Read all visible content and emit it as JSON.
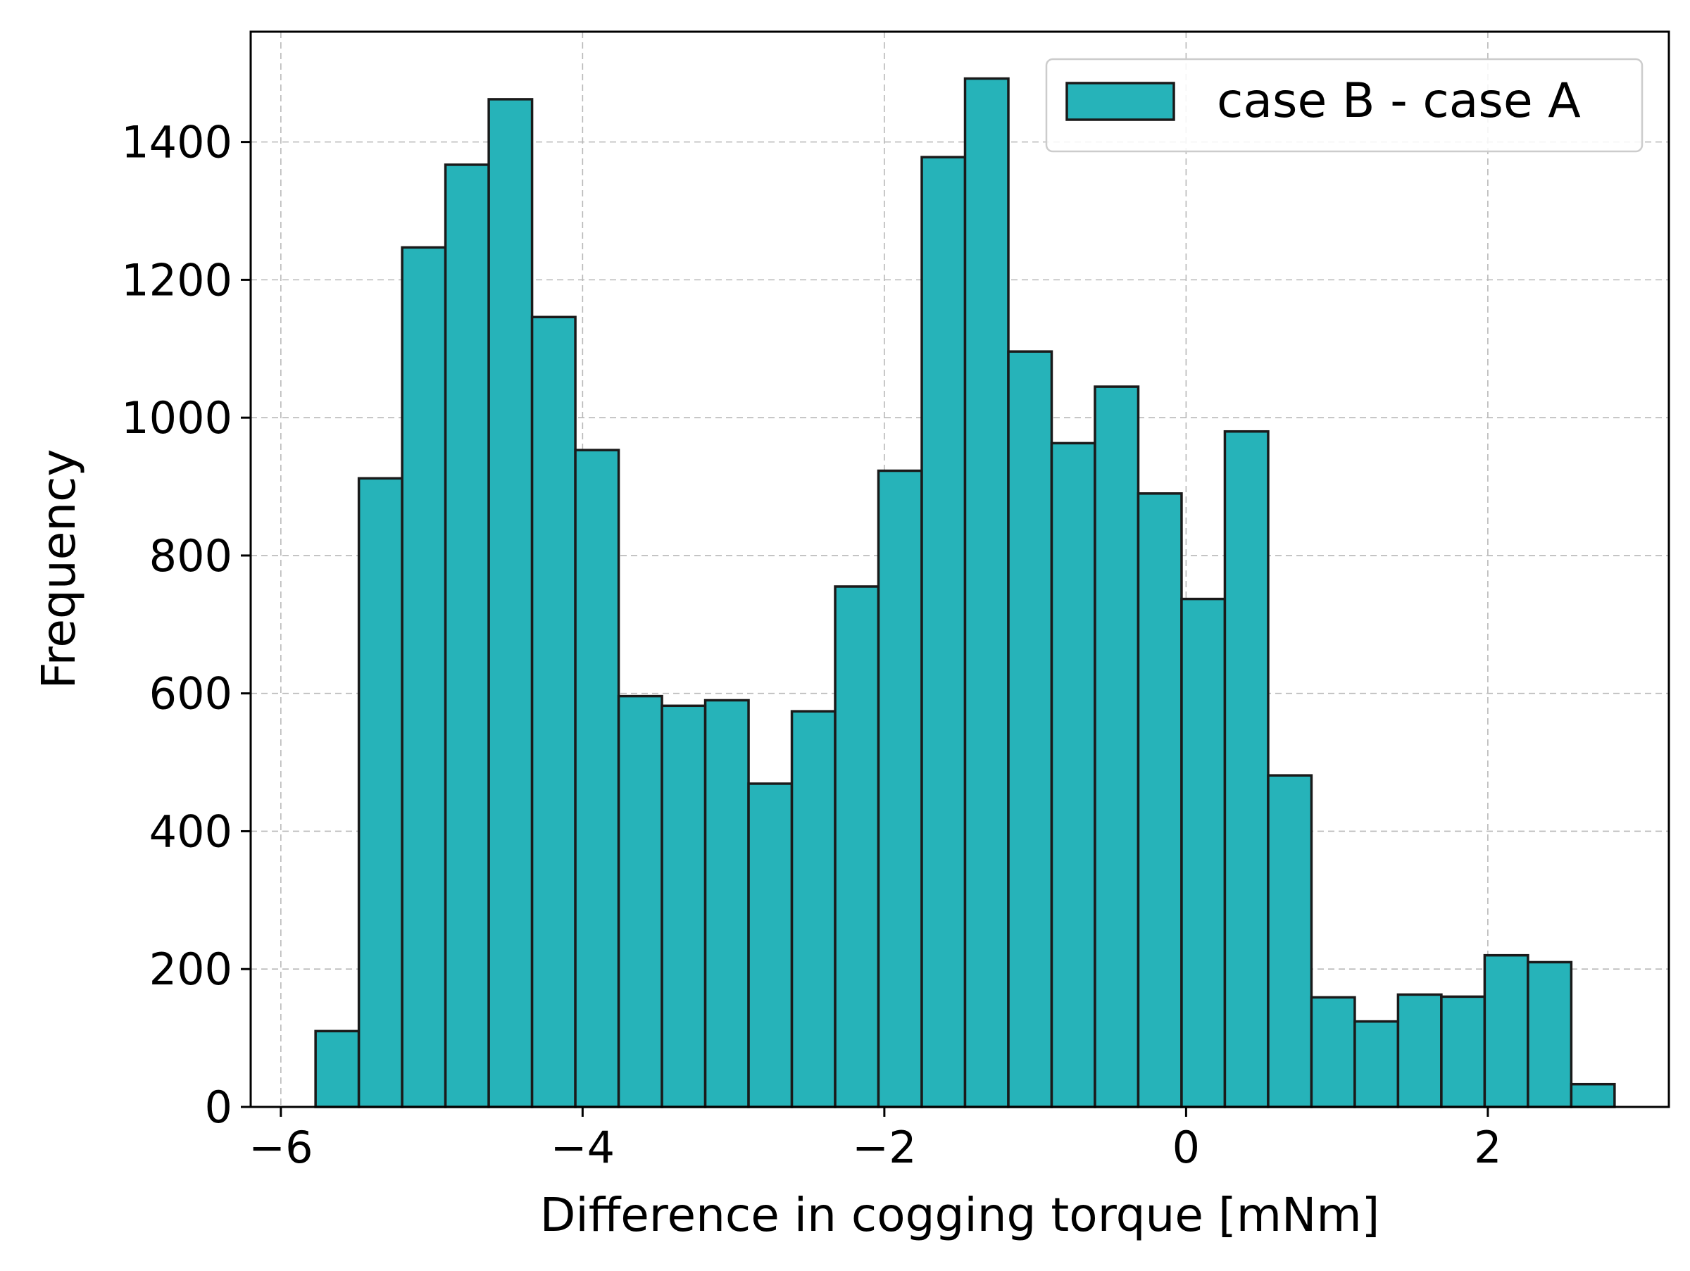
{
  "chart_data": {
    "type": "bar",
    "subtype": "histogram",
    "xlabel": "Difference in cogging torque [mNm]",
    "ylabel": "Frequency",
    "xlim": [
      -6.2,
      3.2
    ],
    "ylim": [
      0,
      1560
    ],
    "xticks": [
      -6,
      -4,
      -2,
      0,
      2
    ],
    "xtick_labels": [
      "−6",
      "−4",
      "−2",
      "0",
      "2"
    ],
    "yticks": [
      0,
      200,
      400,
      600,
      800,
      1000,
      1200,
      1400
    ],
    "ytick_labels": [
      "0",
      "200",
      "400",
      "600",
      "800",
      "1000",
      "1200",
      "1400"
    ],
    "grid": true,
    "legend": {
      "placement": "top-right"
    },
    "bin_edges": [
      -5.77,
      -5.483,
      -5.196,
      -4.909,
      -4.622,
      -4.335,
      -4.048,
      -3.761,
      -3.474,
      -3.187,
      -2.9,
      -2.613,
      -2.326,
      -2.039,
      -1.752,
      -1.465,
      -1.178,
      -0.891,
      -0.604,
      -0.317,
      -0.03,
      0.257,
      0.544,
      0.831,
      1.118,
      1.405,
      1.692,
      1.979,
      2.266,
      2.553,
      2.84
    ],
    "series": [
      {
        "name": "case B - case A",
        "color": "#26b3b9",
        "edgecolor": "#1a1a1a",
        "values": [
          110,
          912,
          1247,
          1367,
          1462,
          1146,
          953,
          596,
          582,
          590,
          469,
          574,
          755,
          923,
          1378,
          1492,
          1096,
          963,
          1045,
          890,
          737,
          980,
          481,
          159,
          124,
          163,
          160,
          220,
          210,
          33
        ]
      }
    ]
  }
}
